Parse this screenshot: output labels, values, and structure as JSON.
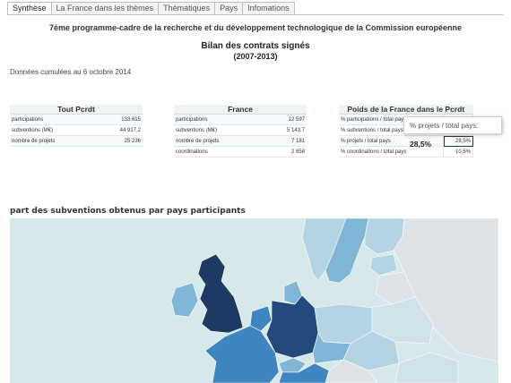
{
  "tabs": [
    {
      "label": "Synthèse",
      "active": true
    },
    {
      "label": "La France dans les thèmes",
      "active": false
    },
    {
      "label": "Thématiques",
      "active": false
    },
    {
      "label": "Pays",
      "active": false
    },
    {
      "label": "Infomations",
      "active": false
    }
  ],
  "header": {
    "program": "7ème programme-cadre de la recherche et du développement technologique de la Commission européenne",
    "title": "Bilan des contrats signés",
    "period": "(2007-2013)",
    "cumul": "Données cumulées au 6 octobre 2014"
  },
  "tables": {
    "total": {
      "title": "Tout Pcrdt",
      "rows": [
        {
          "label": "participations",
          "value": "133 615"
        },
        {
          "label": "subventions (M€)",
          "value": "44 917,2"
        },
        {
          "label": "nombre de projets",
          "value": "25 236"
        }
      ]
    },
    "france": {
      "title": "France",
      "rows": [
        {
          "label": "participations",
          "value": "12 597"
        },
        {
          "label": "subventions (M€)",
          "value": "5 143,7"
        },
        {
          "label": "nombre de projets",
          "value": "7 181"
        },
        {
          "label": "coordinations",
          "value": "2 658"
        }
      ]
    },
    "poids": {
      "title": "Poids de la France dans le Pcrdt",
      "rows": [
        {
          "label": "% participations / total pays",
          "value": ""
        },
        {
          "label": "% subventions / total pays",
          "value": ""
        },
        {
          "label": "% projets / total pays",
          "value": "28,5%"
        },
        {
          "label": "% coordinations / total pays",
          "value": "10,5%"
        }
      ]
    }
  },
  "tooltip": {
    "label": "% projets / total pays:",
    "value": "28,5%"
  },
  "map": {
    "title": "part des subventions obtenus par pays participants",
    "colors": {
      "sea": "#d6e8ea",
      "none": "#dde3e6",
      "light": "#b5d4e3",
      "mid": "#7fb6d6",
      "strong": "#3f86c0",
      "dark": "#234a7a",
      "darkest": "#1c3a63"
    }
  }
}
